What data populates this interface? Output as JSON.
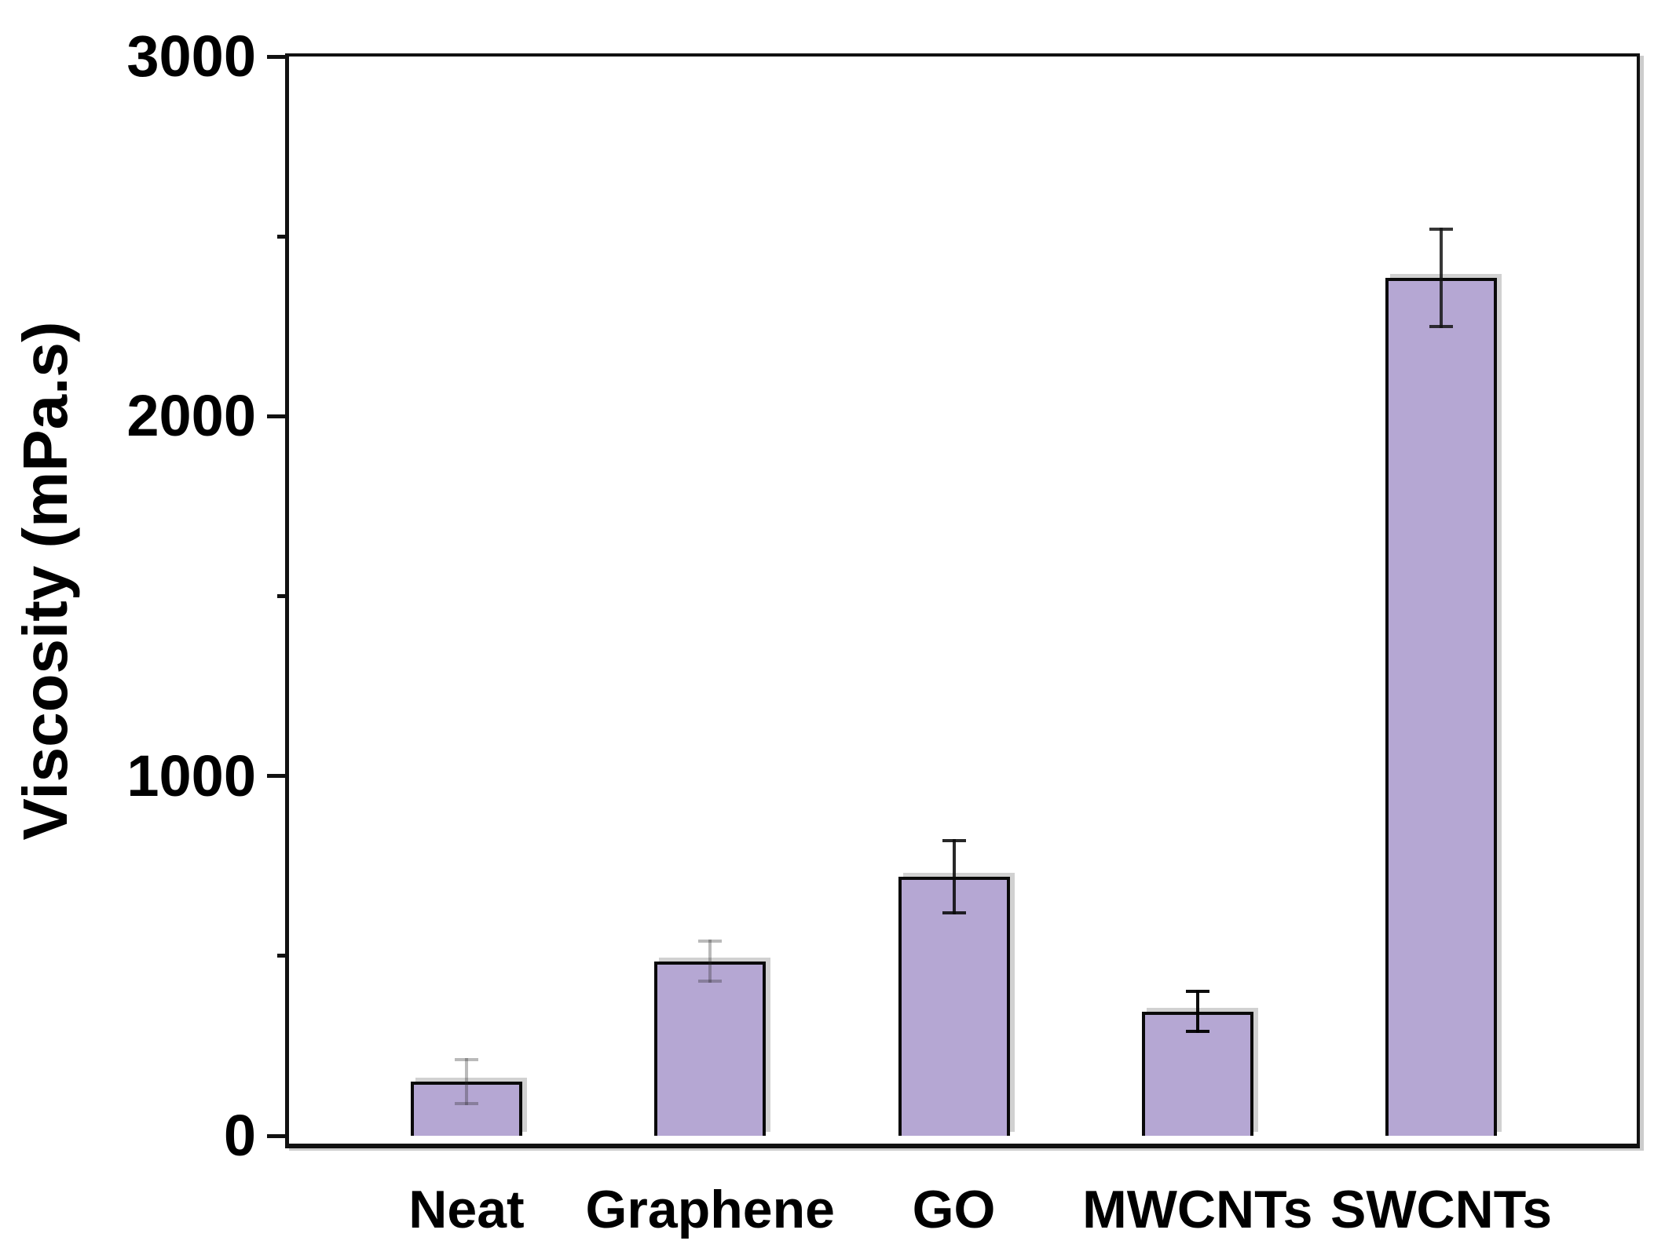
{
  "figure": {
    "background": "#ffffff"
  },
  "chart_data": {
    "type": "bar",
    "title": "",
    "categories": [
      "Neat",
      "Graphene",
      "GO",
      "MWCNTs",
      "SWCNTs"
    ],
    "values": [
      150,
      485,
      720,
      345,
      2385
    ],
    "errors": [
      65,
      60,
      105,
      60,
      140
    ],
    "series": [
      {
        "name": "Viscosity",
        "values": [
          150,
          485,
          720,
          345,
          2385
        ],
        "errors": [
          65,
          60,
          105,
          60,
          140
        ]
      }
    ],
    "xlabel": "",
    "ylabel": "Viscosity (mPa.s)",
    "ylim": [
      0,
      3000
    ],
    "yticks_major": [
      0,
      1000,
      2000,
      3000
    ],
    "yticks_minor": [
      500,
      1500,
      2500
    ],
    "grid": "off",
    "legend": "none",
    "colors": {
      "bar_fill": "#b5a7d3",
      "bar_border": "#0a0a0a",
      "frame": "#111111",
      "text": "#000000",
      "error_bars": [
        "rgba(40,40,40,0.32)",
        "rgba(40,40,40,0.32)",
        "rgba(10,10,10,0.88)",
        "rgba(0,0,0,0.95)",
        "rgba(20,20,20,0.85)"
      ]
    }
  }
}
